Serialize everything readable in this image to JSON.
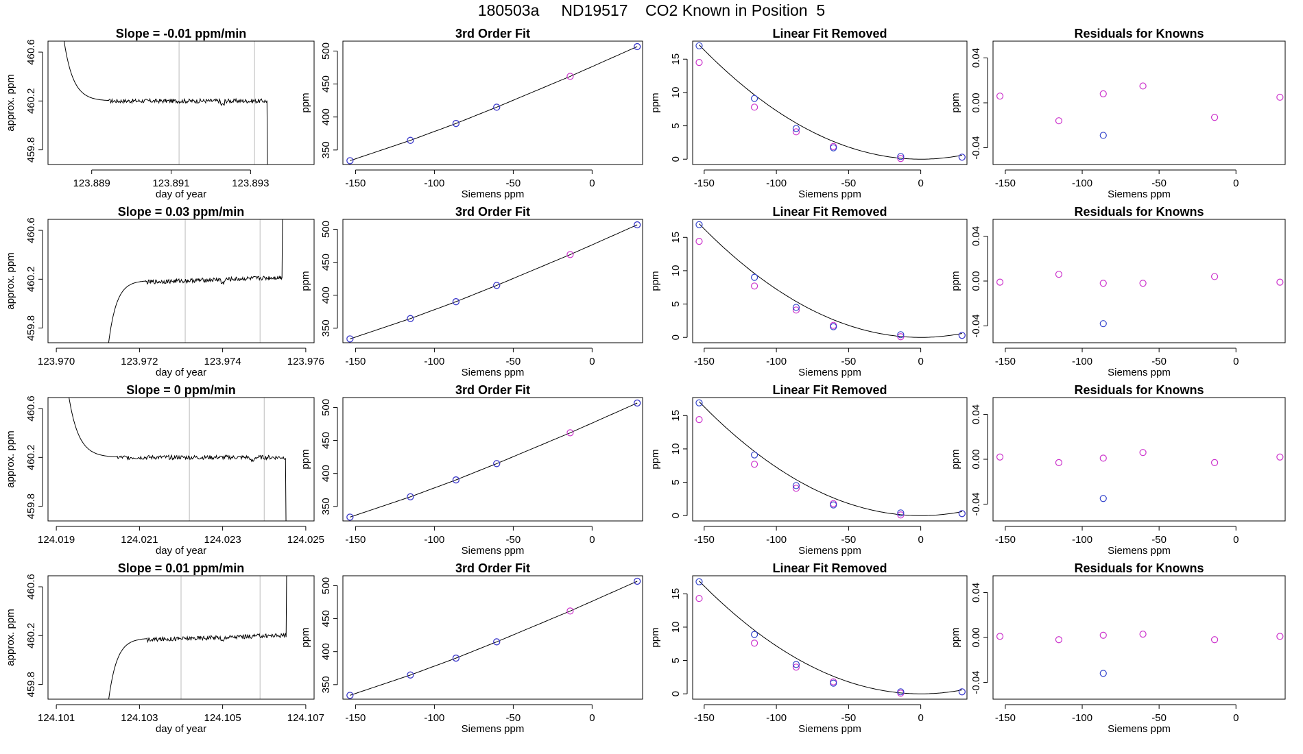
{
  "page_title": "180503a     ND19517    CO2 Known in Position  5",
  "colors": {
    "fit_line": "#000000",
    "known": "#cc33cc",
    "measured": "#3344cc",
    "marker": "#bbbbbb",
    "box": "#000000"
  },
  "chart_data": [
    {
      "type": "line",
      "row": 1,
      "col": 1,
      "title": "Slope =  -0.01  ppm/min",
      "xlabel": "day of year",
      "ylabel": "approx. ppm",
      "xticks": [
        "123.889",
        "123.891",
        "123.893"
      ],
      "xtick_values": [
        123.889,
        123.891,
        123.893
      ],
      "yticks": [
        "459.8",
        "460.2",
        "460.6"
      ],
      "ytick_values": [
        459.8,
        460.2,
        460.6
      ],
      "xlim": [
        123.8879,
        123.8946
      ],
      "ylim": [
        459.68,
        460.69
      ],
      "vlines": [
        123.8912,
        123.8931
      ],
      "start": 123.8883,
      "end": 123.8935,
      "profile": "decay",
      "plateau": 460.2,
      "ramp_value": 460.7,
      "tail_value": 459.5,
      "dip_x": 123.8923
    },
    {
      "type": "line",
      "row": 1,
      "col": 2,
      "title": "3rd Order Fit",
      "xlabel": "Siemens ppm",
      "ylabel": "ppm",
      "xticks": [
        "-150",
        "-100",
        "-50",
        "0"
      ],
      "xtick_values": [
        -150,
        -100,
        -50,
        0
      ],
      "yticks": [
        "350",
        "400",
        "450",
        "500"
      ],
      "ytick_values": [
        350,
        400,
        450,
        500
      ],
      "xlim": [
        -158,
        32
      ],
      "ylim": [
        328,
        515
      ],
      "x": [
        -153.5,
        -115.2,
        -86.3,
        -60.5,
        -13.9,
        28.6
      ],
      "known": [
        333.8,
        364.6,
        390.2,
        414.9,
        461.6,
        506.7
      ],
      "measured": [
        333.8,
        364.6,
        390.2,
        414.9,
        null,
        506.7
      ]
    },
    {
      "type": "scatter",
      "row": 1,
      "col": 3,
      "title": "Linear Fit Removed",
      "xlabel": "Siemens ppm",
      "ylabel": "ppm",
      "xticks": [
        "-150",
        "-100",
        "-50",
        "0"
      ],
      "xtick_values": [
        -150,
        -100,
        -50,
        0
      ],
      "yticks": [
        "0",
        "5",
        "10",
        "15"
      ],
      "ytick_values": [
        0,
        5,
        10,
        15
      ],
      "xlim": [
        -158,
        32
      ],
      "ylim": [
        -0.8,
        17.7
      ],
      "x": [
        -153.5,
        -115.2,
        -86.3,
        -60.5,
        -13.9,
        28.6
      ],
      "known": [
        14.5,
        7.8,
        4.1,
        1.9,
        0.1,
        0.3
      ],
      "measured": [
        17.0,
        9.1,
        4.6,
        1.7,
        0.4,
        0.3
      ],
      "curve": {
        "vertex_x": 0,
        "coef": 0.000727
      }
    },
    {
      "type": "scatter",
      "row": 1,
      "col": 4,
      "title": "Residuals for Knowns",
      "xlabel": "Siemens ppm",
      "ylabel": "ppm",
      "xticks": [
        "-150",
        "-100",
        "-50",
        "0"
      ],
      "xtick_values": [
        -150,
        -100,
        -50,
        0
      ],
      "yticks": [
        "-0.04",
        "0.00",
        "0.04"
      ],
      "ytick_values": [
        -0.04,
        0,
        0.04
      ],
      "xlim": [
        -158,
        32
      ],
      "ylim": [
        -0.055,
        0.055
      ],
      "x": [
        -153.5,
        -115.2,
        -86.3,
        -60.5,
        -13.9,
        28.6
      ],
      "known": [
        0.006,
        -0.016,
        0.008,
        0.015,
        -0.013,
        0.005
      ],
      "measured": [
        null,
        null,
        -0.029,
        null,
        null,
        null
      ]
    },
    {
      "type": "line",
      "row": 2,
      "col": 1,
      "title": "Slope =  0.03  ppm/min",
      "xlabel": "day of year",
      "ylabel": "approx. ppm",
      "xticks": [
        "123.970",
        "123.972",
        "123.974",
        "123.976"
      ],
      "xtick_values": [
        123.97,
        123.972,
        123.974,
        123.976
      ],
      "yticks": [
        "459.8",
        "460.2",
        "460.6"
      ],
      "ytick_values": [
        459.8,
        460.2,
        460.6
      ],
      "xlim": [
        123.9698,
        123.9762
      ],
      "ylim": [
        459.68,
        460.69
      ],
      "vlines": [
        123.9731,
        123.9749
      ],
      "start": 123.9712,
      "end": 123.9755,
      "profile": "rise",
      "plateau": 460.19,
      "ramp_value": 459.5,
      "tail_value": 460.8,
      "dip_x": 123.974
    },
    {
      "type": "line",
      "row": 2,
      "col": 2,
      "title": "3rd Order Fit",
      "xlabel": "Siemens ppm",
      "ylabel": "ppm",
      "xticks": [
        "-150",
        "-100",
        "-50",
        "0"
      ],
      "xtick_values": [
        -150,
        -100,
        -50,
        0
      ],
      "yticks": [
        "350",
        "400",
        "450",
        "500"
      ],
      "ytick_values": [
        350,
        400,
        450,
        500
      ],
      "xlim": [
        -158,
        32
      ],
      "ylim": [
        328,
        515
      ],
      "x": [
        -153.5,
        -115.2,
        -86.3,
        -60.5,
        -13.9,
        28.6
      ],
      "known": [
        333.8,
        364.6,
        390.2,
        414.9,
        461.6,
        506.7
      ],
      "measured": [
        333.8,
        364.6,
        390.2,
        414.9,
        null,
        506.7
      ]
    },
    {
      "type": "scatter",
      "row": 2,
      "col": 3,
      "title": "Linear Fit Removed",
      "xlabel": "Siemens ppm",
      "ylabel": "ppm",
      "xticks": [
        "-150",
        "-100",
        "-50",
        "0"
      ],
      "xtick_values": [
        -150,
        -100,
        -50,
        0
      ],
      "yticks": [
        "0",
        "5",
        "10",
        "15"
      ],
      "ytick_values": [
        0,
        5,
        10,
        15
      ],
      "xlim": [
        -158,
        32
      ],
      "ylim": [
        -0.8,
        17.7
      ],
      "x": [
        -153.5,
        -115.2,
        -86.3,
        -60.5,
        -13.9,
        28.6
      ],
      "known": [
        14.4,
        7.7,
        4.1,
        1.8,
        0.1,
        0.3
      ],
      "measured": [
        16.9,
        9.0,
        4.5,
        1.6,
        0.4,
        0.3
      ],
      "curve": {
        "vertex_x": 0,
        "coef": 0.000723
      }
    },
    {
      "type": "scatter",
      "row": 2,
      "col": 4,
      "title": "Residuals for Knowns",
      "xlabel": "Siemens ppm",
      "ylabel": "ppm",
      "xticks": [
        "-150",
        "-100",
        "-50",
        "0"
      ],
      "xtick_values": [
        -150,
        -100,
        -50,
        0
      ],
      "yticks": [
        "-0.04",
        "0.00",
        "0.04"
      ],
      "ytick_values": [
        -0.04,
        0,
        0.04
      ],
      "xlim": [
        -158,
        32
      ],
      "ylim": [
        -0.055,
        0.055
      ],
      "x": [
        -153.5,
        -115.2,
        -86.3,
        -60.5,
        -13.9,
        28.6
      ],
      "known": [
        -0.001,
        0.006,
        -0.002,
        -0.002,
        0.004,
        -0.001
      ],
      "measured": [
        null,
        null,
        -0.038,
        null,
        null,
        null
      ]
    },
    {
      "type": "line",
      "row": 3,
      "col": 1,
      "title": "Slope =  0  ppm/min",
      "xlabel": "day of year",
      "ylabel": "approx. ppm",
      "xticks": [
        "124.019",
        "124.021",
        "124.023",
        "124.025"
      ],
      "xtick_values": [
        124.019,
        124.021,
        124.023,
        124.025
      ],
      "yticks": [
        "459.8",
        "460.2",
        "460.6"
      ],
      "ytick_values": [
        459.8,
        460.2,
        460.6
      ],
      "xlim": [
        124.0188,
        124.0252
      ],
      "ylim": [
        459.68,
        460.69
      ],
      "vlines": [
        124.0222,
        124.024
      ],
      "start": 124.0193,
      "end": 124.0246,
      "profile": "decay",
      "plateau": 460.2,
      "ramp_value": 460.7,
      "tail_value": 459.5,
      "dip_x": 124.0237
    },
    {
      "type": "line",
      "row": 3,
      "col": 2,
      "title": "3rd Order Fit",
      "xlabel": "Siemens ppm",
      "ylabel": "ppm",
      "xticks": [
        "-150",
        "-100",
        "-50",
        "0"
      ],
      "xtick_values": [
        -150,
        -100,
        -50,
        0
      ],
      "yticks": [
        "350",
        "400",
        "450",
        "500"
      ],
      "ytick_values": [
        350,
        400,
        450,
        500
      ],
      "xlim": [
        -158,
        32
      ],
      "ylim": [
        328,
        515
      ],
      "x": [
        -153.5,
        -115.2,
        -86.3,
        -60.5,
        -13.9,
        28.6
      ],
      "known": [
        333.8,
        364.6,
        390.2,
        414.9,
        461.6,
        506.7
      ],
      "measured": [
        333.8,
        364.6,
        390.2,
        414.9,
        null,
        506.7
      ]
    },
    {
      "type": "scatter",
      "row": 3,
      "col": 3,
      "title": "Linear Fit Removed",
      "xlabel": "Siemens ppm",
      "ylabel": "ppm",
      "xticks": [
        "-150",
        "-100",
        "-50",
        "0"
      ],
      "xtick_values": [
        -150,
        -100,
        -50,
        0
      ],
      "yticks": [
        "0",
        "5",
        "10",
        "15"
      ],
      "ytick_values": [
        0,
        5,
        10,
        15
      ],
      "xlim": [
        -158,
        32
      ],
      "ylim": [
        -0.8,
        17.7
      ],
      "x": [
        -153.5,
        -115.2,
        -86.3,
        -60.5,
        -13.9,
        28.6
      ],
      "known": [
        14.4,
        7.7,
        4.1,
        1.8,
        0.1,
        0.3
      ],
      "measured": [
        16.9,
        9.1,
        4.5,
        1.6,
        0.4,
        0.3
      ],
      "curve": {
        "vertex_x": 0,
        "coef": 0.000725
      }
    },
    {
      "type": "scatter",
      "row": 3,
      "col": 4,
      "title": "Residuals for Knowns",
      "xlabel": "Siemens ppm",
      "ylabel": "ppm",
      "xticks": [
        "-150",
        "-100",
        "-50",
        "0"
      ],
      "xtick_values": [
        -150,
        -100,
        -50,
        0
      ],
      "yticks": [
        "-0.04",
        "0.00",
        "0.04"
      ],
      "ytick_values": [
        -0.04,
        0,
        0.04
      ],
      "xlim": [
        -158,
        32
      ],
      "ylim": [
        -0.055,
        0.055
      ],
      "x": [
        -153.5,
        -115.2,
        -86.3,
        -60.5,
        -13.9,
        28.6
      ],
      "known": [
        0.002,
        -0.003,
        0.001,
        0.006,
        -0.003,
        0.002
      ],
      "measured": [
        null,
        null,
        -0.035,
        null,
        null,
        null
      ]
    },
    {
      "type": "line",
      "row": 4,
      "col": 1,
      "title": "Slope =  0.01  ppm/min",
      "xlabel": "day of year",
      "ylabel": "approx. ppm",
      "xticks": [
        "124.101",
        "124.103",
        "124.105",
        "124.107"
      ],
      "xtick_values": [
        124.101,
        124.103,
        124.105,
        124.107
      ],
      "yticks": [
        "459.8",
        "460.2",
        "460.6"
      ],
      "ytick_values": [
        459.8,
        460.2,
        460.6
      ],
      "xlim": [
        124.1008,
        124.1072
      ],
      "ylim": [
        459.68,
        460.69
      ],
      "vlines": [
        124.104,
        124.1059
      ],
      "start": 124.1022,
      "end": 124.1066,
      "profile": "rise",
      "plateau": 460.18,
      "ramp_value": 459.5,
      "tail_value": 460.8,
      "dip_x": 124.105
    },
    {
      "type": "line",
      "row": 4,
      "col": 2,
      "title": "3rd Order Fit",
      "xlabel": "Siemens ppm",
      "ylabel": "ppm",
      "xticks": [
        "-150",
        "-100",
        "-50",
        "0"
      ],
      "xtick_values": [
        -150,
        -100,
        -50,
        0
      ],
      "yticks": [
        "350",
        "400",
        "450",
        "500"
      ],
      "ytick_values": [
        350,
        400,
        450,
        500
      ],
      "xlim": [
        -158,
        32
      ],
      "ylim": [
        328,
        515
      ],
      "x": [
        -153.5,
        -115.2,
        -86.3,
        -60.5,
        -13.9,
        28.6
      ],
      "known": [
        333.8,
        364.6,
        390.2,
        414.9,
        461.6,
        506.7
      ],
      "measured": [
        333.8,
        364.6,
        390.2,
        414.9,
        null,
        506.7
      ]
    },
    {
      "type": "scatter",
      "row": 4,
      "col": 3,
      "title": "Linear Fit Removed",
      "xlabel": "Siemens ppm",
      "ylabel": "ppm",
      "xticks": [
        "-150",
        "-100",
        "-50",
        "0"
      ],
      "xtick_values": [
        -150,
        -100,
        -50,
        0
      ],
      "yticks": [
        "0",
        "5",
        "10",
        "15"
      ],
      "ytick_values": [
        0,
        5,
        10,
        15
      ],
      "xlim": [
        -158,
        32
      ],
      "ylim": [
        -0.8,
        17.7
      ],
      "x": [
        -153.5,
        -115.2,
        -86.3,
        -60.5,
        -13.9,
        28.6
      ],
      "known": [
        14.3,
        7.6,
        4.0,
        1.8,
        0.1,
        0.3
      ],
      "measured": [
        16.8,
        8.9,
        4.4,
        1.6,
        0.3,
        0.3
      ],
      "curve": {
        "vertex_x": 0,
        "coef": 0.000718
      }
    },
    {
      "type": "scatter",
      "row": 4,
      "col": 4,
      "title": "Residuals for Knowns",
      "xlabel": "Siemens ppm",
      "ylabel": "ppm",
      "xticks": [
        "-150",
        "-100",
        "-50",
        "0"
      ],
      "xtick_values": [
        -150,
        -100,
        -50,
        0
      ],
      "yticks": [
        "-0.04",
        "0.00",
        "0.04"
      ],
      "ytick_values": [
        -0.04,
        0,
        0.04
      ],
      "xlim": [
        -158,
        32
      ],
      "ylim": [
        -0.055,
        0.055
      ],
      "x": [
        -153.5,
        -115.2,
        -86.3,
        -60.5,
        -13.9,
        28.6
      ],
      "known": [
        0.001,
        -0.002,
        0.002,
        0.003,
        -0.002,
        0.001
      ],
      "measured": [
        null,
        null,
        -0.032,
        null,
        null,
        null
      ]
    }
  ]
}
